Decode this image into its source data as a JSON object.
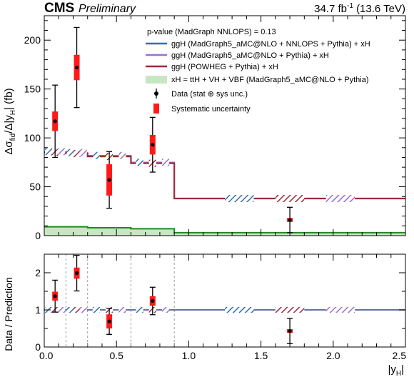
{
  "header": {
    "experiment": "CMS",
    "status": "Preliminary",
    "lumi": "34.7 fb",
    "lumi_exp": "-1",
    "energy": "(13.6 TeV)"
  },
  "legend": {
    "pvalue": "p-value (MadGraph NNLOPS) = 0.13",
    "items": [
      "ggH (MadGraph5_aMC@NLO + NNLOPS + Pythia) + xH",
      "ggH (MadGraph5_aMC@NLO + Pythia) + xH",
      "ggH (POWHEG + Pythia) + xH",
      "xH = ttH + VH + VBF (MadGraph5_aMC@NLO + Pythia)",
      "Data (stat ⊕ sys unc.)",
      "Systematic uncertainty"
    ]
  },
  "colors": {
    "nnlops": "#2f6fb0",
    "amcnlo": "#9b6fd0",
    "powheg": "#9c2a3a",
    "xh_fill": "#c9e6c3",
    "xh_line": "#1f8a1f",
    "syst": "#ff1a1a",
    "data": "#000000"
  },
  "chart_data": {
    "type": "line",
    "panels": [
      "main",
      "ratio"
    ],
    "xlabel": "|y_H|",
    "ylabel": "Δσ_fid/Δ|y_H| (fb)",
    "ratio_ylabel": "Data / Prediction",
    "xlim": [
      0,
      2.5
    ],
    "ylim": [
      0,
      225
    ],
    "ratio_ylim": [
      0,
      2.5
    ],
    "x_ticks": [
      "0.0",
      "0.5",
      "1.0",
      "1.5",
      "2.0",
      "2.5"
    ],
    "y_ticks": [
      "0",
      "50",
      "100",
      "150",
      "200"
    ],
    "ratio_y_ticks": [
      "0",
      "1",
      "2"
    ],
    "bin_edges": [
      0,
      0.15,
      0.3,
      0.6,
      0.9,
      2.5
    ],
    "data_x": [
      0.075,
      0.225,
      0.45,
      0.75,
      1.7
    ],
    "data_y": [
      117,
      172,
      57,
      93,
      16
    ],
    "data_total_unc": [
      37,
      41,
      29,
      28,
      13
    ],
    "data_syst_unc": [
      10,
      13,
      16,
      10,
      2
    ],
    "series": [
      {
        "name": "ggH (MadGraph5_aMC@NLO + NNLOPS + Pythia) + xH",
        "values": [
          86,
          85,
          82,
          75,
          38
        ]
      },
      {
        "name": "ggH (MadGraph5_aMC@NLO + Pythia) + xH",
        "values": [
          86,
          85,
          82,
          75,
          38
        ]
      },
      {
        "name": "ggH (POWHEG + Pythia) + xH",
        "values": [
          85,
          84,
          81,
          74,
          38
        ]
      },
      {
        "name": "xH = ttH + VH + VBF (MadGraph5_aMC@NLO + Pythia)",
        "values": [
          9,
          9,
          8,
          7,
          3
        ]
      }
    ],
    "ratio_data": [
      1.37,
      1.99,
      0.69,
      1.24,
      0.43
    ],
    "ratio_total_unc": [
      0.43,
      0.48,
      0.35,
      0.37,
      0.34
    ],
    "ratio_syst_unc": [
      0.12,
      0.15,
      0.19,
      0.13,
      0.05
    ]
  }
}
